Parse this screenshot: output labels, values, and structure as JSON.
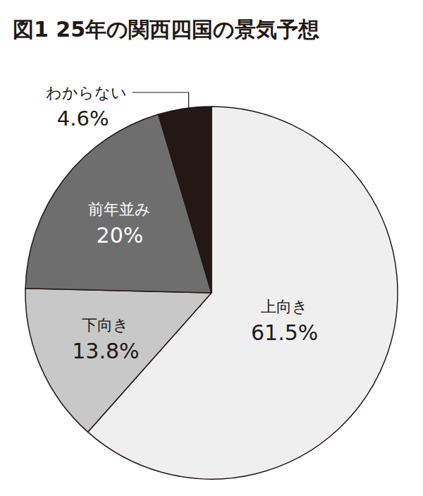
{
  "chart_data": {
    "type": "pie",
    "title": "図1 25年の関西四国の景気予想",
    "categories": [
      "上向き",
      "下向き",
      "前年並み",
      "わからない"
    ],
    "values": [
      61.5,
      13.8,
      20,
      4.6
    ],
    "value_labels": [
      "61.5%",
      "13.8%",
      "20%",
      "4.6%"
    ],
    "colors": [
      "#efefef",
      "#c8c8c8",
      "#6e6e6e",
      "#231815"
    ],
    "data_labels": true
  }
}
